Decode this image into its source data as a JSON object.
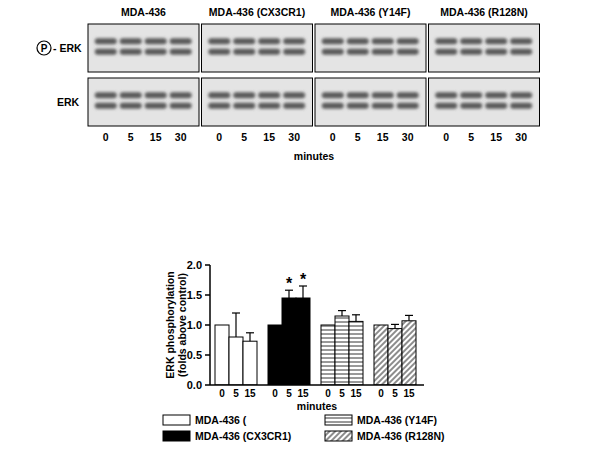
{
  "chart_data": {
    "type": "bar",
    "categories": [
      "0",
      "5",
      "15"
    ],
    "xlabel": "minutes",
    "ylabel": "ERK phosphorylation (folds above control)",
    "ylim": [
      0,
      2
    ],
    "yticks": [
      {
        "value": 0,
        "label": "0.0"
      },
      {
        "value": 0.5,
        "label": "0.5"
      },
      {
        "value": 1,
        "label": "1.0"
      },
      {
        "value": 1.5,
        "label": "1.5"
      },
      {
        "value": 2,
        "label": "2.0"
      }
    ],
    "series": [
      {
        "name": "MDA-436 (",
        "color": "#ffffff",
        "values": [
          1.0,
          0.8,
          0.73
        ],
        "errors": [
          null,
          0.4,
          0.14
        ]
      },
      {
        "name": "MDA-436 (CX3CR1)",
        "color": "#000000",
        "values": [
          1.0,
          1.45,
          1.45
        ],
        "errors": [
          null,
          0.13,
          0.2
        ]
      },
      {
        "name": "MDA-436 (Y14F)",
        "color": "#ffffff",
        "values": [
          1.0,
          1.15,
          1.06
        ],
        "errors": [
          null,
          0.09,
          0.11
        ]
      },
      {
        "name": "MDA-436 (R128N)",
        "color": "#ffffff",
        "values": [
          1.0,
          0.94,
          1.07
        ],
        "errors": [
          null,
          0.07,
          0.09
        ]
      }
    ],
    "annotations": [
      {
        "text": "*",
        "series": 1,
        "index": 1
      },
      {
        "text": "*",
        "series": 1,
        "index": 2
      }
    ],
    "legend": "bottom"
  },
  "blot": {
    "panels": [
      "MDA-436",
      "MDA-436 (CX3CR1)",
      "MDA-436 (Y14F)",
      "MDA-436 (R128N)"
    ],
    "rows": [
      {
        "circled": "P",
        "label": "- ERK"
      },
      {
        "label": "ERK"
      }
    ],
    "lanes": [
      "0",
      "5",
      "15",
      "30"
    ],
    "xlabel": "minutes"
  }
}
